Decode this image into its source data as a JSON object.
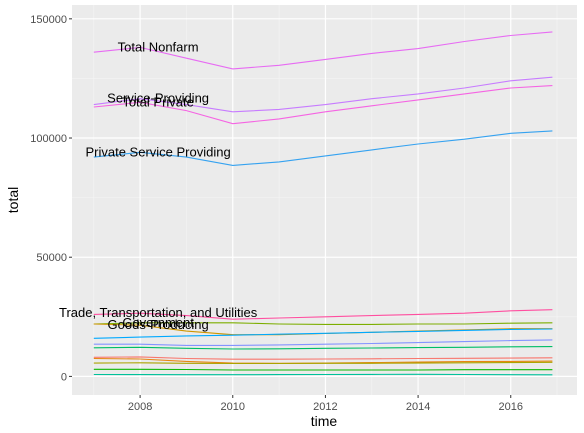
{
  "chart_data": {
    "type": "line",
    "x_label": "time",
    "y_label": "total",
    "x": [
      2007,
      2008,
      2009,
      2010,
      2011,
      2012,
      2013,
      2014,
      2015,
      2016,
      2016.9
    ],
    "xlim": [
      2006.53,
      2017.43
    ],
    "ylim": [
      -7800,
      155800
    ],
    "xticks": [
      2008,
      2010,
      2012,
      2014,
      2016
    ],
    "yticks": [
      0,
      50000,
      100000,
      150000
    ],
    "xminor": [
      2007,
      2009,
      2011,
      2013,
      2015,
      2017
    ],
    "yminor": [
      25000,
      75000,
      125000
    ],
    "grid": true,
    "series": [
      {
        "name": "Total Nonfarm",
        "color": "#e76bf3",
        "values": [
          136000,
          138000,
          133500,
          129000,
          130500,
          133000,
          135500,
          137500,
          140500,
          143000,
          144500
        ]
      },
      {
        "name": "Service-Providing",
        "color": "#c77cff",
        "values": [
          114000,
          116500,
          114000,
          111000,
          112000,
          114000,
          116500,
          118500,
          121000,
          124000,
          125500
        ]
      },
      {
        "name": "Total Private",
        "color": "#f564e3",
        "values": [
          113000,
          115000,
          111500,
          106000,
          108000,
          111000,
          113500,
          116000,
          118500,
          121000,
          122000
        ]
      },
      {
        "name": "Private Service Providing",
        "color": "#35a2f0",
        "values": [
          92000,
          94000,
          92000,
          88500,
          90000,
          92500,
          95000,
          97500,
          99500,
          102000,
          103000
        ]
      },
      {
        "name": "Trade, Transportation, and Utilities",
        "color": "#ff4fa0",
        "values": [
          26000,
          26500,
          25500,
          24000,
          24500,
          25000,
          25500,
          26000,
          26500,
          27500,
          28000
        ]
      },
      {
        "name": "Government",
        "color": "#7cae00",
        "values": [
          22000,
          22500,
          22500,
          22500,
          22000,
          21800,
          21800,
          22000,
          22000,
          22300,
          22500
        ]
      },
      {
        "name": "Goods-Producing",
        "color": "#cd9600",
        "values": [
          22000,
          21500,
          19000,
          17500,
          17500,
          18000,
          18500,
          19000,
          19500,
          20000,
          20000
        ]
      },
      {
        "color": "#00a9ff",
        "values": [
          16000,
          16500,
          17000,
          17300,
          17700,
          18100,
          18500,
          18900,
          19300,
          19700,
          19900
        ]
      },
      {
        "color": "#8494ff",
        "values": [
          13500,
          13500,
          13000,
          13000,
          13200,
          13500,
          13800,
          14200,
          14600,
          15000,
          15300
        ]
      },
      {
        "color": "#00be67",
        "values": [
          12000,
          12200,
          11800,
          11500,
          11600,
          11800,
          11900,
          12100,
          12200,
          12400,
          12500
        ]
      },
      {
        "color": "#f8766d",
        "values": [
          8000,
          8200,
          7500,
          7200,
          7200,
          7300,
          7400,
          7500,
          7600,
          7700,
          7800
        ]
      },
      {
        "color": "#e68613",
        "values": [
          7500,
          7300,
          6300,
          5600,
          5500,
          5600,
          5800,
          6000,
          6200,
          6300,
          6400
        ]
      },
      {
        "color": "#aba300",
        "values": [
          5600,
          5700,
          5500,
          5400,
          5400,
          5500,
          5500,
          5600,
          5700,
          5800,
          5900
        ]
      },
      {
        "color": "#0cb702",
        "values": [
          3000,
          3000,
          2900,
          2700,
          2700,
          2700,
          2700,
          2700,
          2800,
          2800,
          2800
        ]
      },
      {
        "color": "#00c19a",
        "values": [
          800,
          750,
          700,
          700,
          750,
          800,
          850,
          880,
          820,
          700,
          680
        ]
      }
    ]
  }
}
